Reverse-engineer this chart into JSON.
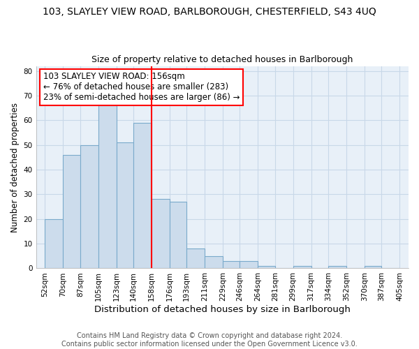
{
  "title": "103, SLAYLEY VIEW ROAD, BARLBOROUGH, CHESTERFIELD, S43 4UQ",
  "subtitle": "Size of property relative to detached houses in Barlborough",
  "xlabel": "Distribution of detached houses by size in Barlborough",
  "ylabel": "Number of detached properties",
  "bin_edges": [
    52,
    70,
    87,
    105,
    123,
    140,
    158,
    176,
    193,
    211,
    229,
    246,
    264,
    281,
    299,
    317,
    334,
    352,
    370,
    387,
    405
  ],
  "bar_heights": [
    20,
    46,
    50,
    66,
    51,
    59,
    28,
    27,
    8,
    5,
    3,
    3,
    1,
    0,
    1,
    0,
    1,
    0,
    1,
    0
  ],
  "bar_color": "#ccdcec",
  "bar_edgecolor": "#7aaacb",
  "grid_color": "#c8d8e8",
  "background_color": "#ffffff",
  "plot_bg_color": "#e8f0f8",
  "vline_x": 158,
  "vline_color": "red",
  "annotation_text": "103 SLAYLEY VIEW ROAD: 156sqm\n← 76% of detached houses are smaller (283)\n23% of semi-detached houses are larger (86) →",
  "annotation_box_edgecolor": "red",
  "tick_labels": [
    "52sqm",
    "70sqm",
    "87sqm",
    "105sqm",
    "123sqm",
    "140sqm",
    "158sqm",
    "176sqm",
    "193sqm",
    "211sqm",
    "229sqm",
    "246sqm",
    "264sqm",
    "281sqm",
    "299sqm",
    "317sqm",
    "334sqm",
    "352sqm",
    "370sqm",
    "387sqm",
    "405sqm"
  ],
  "tick_positions": [
    52,
    70,
    87,
    105,
    123,
    140,
    158,
    176,
    193,
    211,
    229,
    246,
    264,
    281,
    299,
    317,
    334,
    352,
    370,
    387,
    405
  ],
  "ylim": [
    0,
    82
  ],
  "xlim": [
    43,
    414
  ],
  "yticks": [
    0,
    10,
    20,
    30,
    40,
    50,
    60,
    70,
    80
  ],
  "footer_text": "Contains HM Land Registry data © Crown copyright and database right 2024.\nContains public sector information licensed under the Open Government Licence v3.0.",
  "title_fontsize": 10,
  "subtitle_fontsize": 9,
  "xlabel_fontsize": 9.5,
  "ylabel_fontsize": 8.5,
  "annotation_fontsize": 8.5,
  "tick_fontsize": 7.5,
  "footer_fontsize": 7
}
